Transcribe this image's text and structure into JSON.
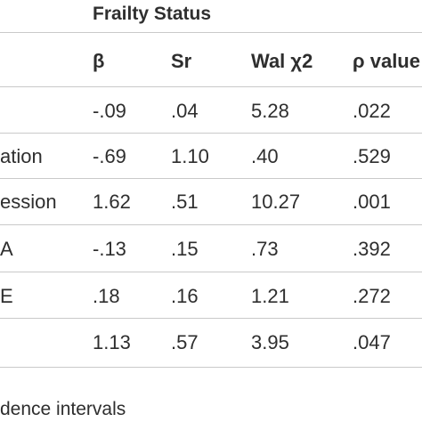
{
  "table": {
    "group_header": "Frailty Status",
    "columns": [
      "",
      "β",
      "Sr",
      "Wal χ2",
      "ρ value"
    ],
    "rows": [
      {
        "label": "",
        "beta": "-.09",
        "sr": ".04",
        "wald": "5.28",
        "p": ".022"
      },
      {
        "label": "ation",
        "beta": "-.69",
        "sr": "1.10",
        "wald": ".40",
        "p": ".529"
      },
      {
        "label": "ession",
        "beta": "1.62",
        "sr": ".51",
        "wald": "10.27",
        "p": ".001"
      },
      {
        "label": "A",
        "beta": "-.13",
        "sr": ".15",
        "wald": ".73",
        "p": ".392"
      },
      {
        "label": "E",
        "beta": ".18",
        "sr": ".16",
        "wald": "1.21",
        "p": ".272"
      },
      {
        "label": "",
        "beta": "1.13",
        "sr": ".57",
        "wald": "3.95",
        "p": ".047"
      }
    ]
  },
  "footnote": "dence intervals"
}
